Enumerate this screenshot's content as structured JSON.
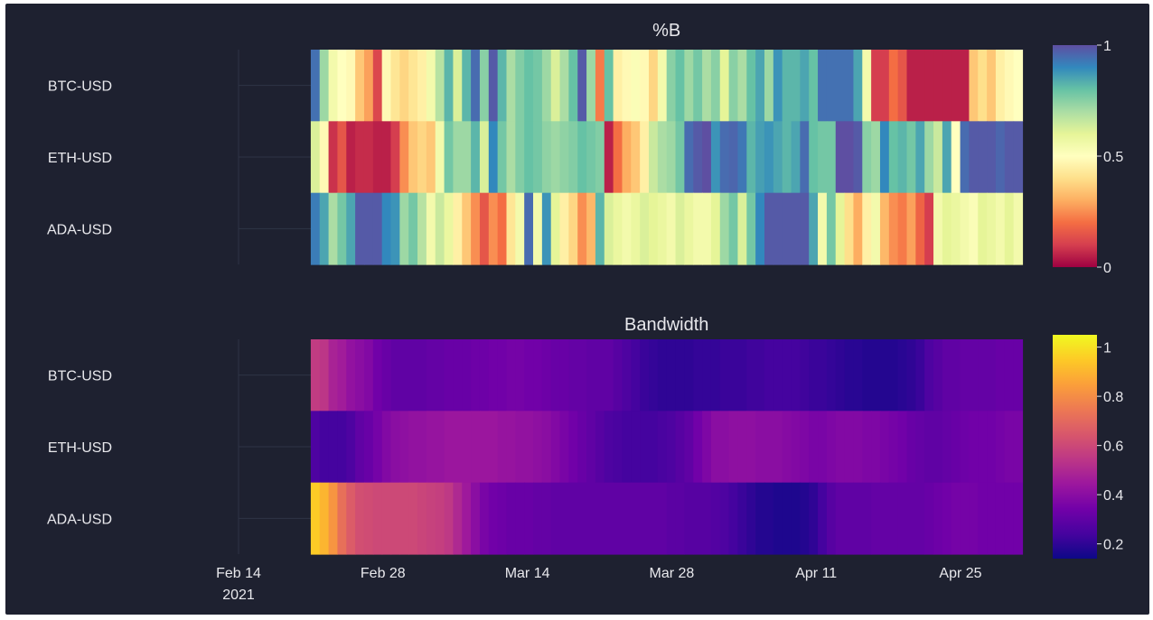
{
  "background_color": "#1e2130",
  "text_color": "#e8e8ec",
  "grid_color": "#2f3446",
  "chart_data": [
    {
      "type": "heatmap",
      "title": "%B",
      "xlabel": "",
      "ylabel": "",
      "y_categories": [
        "BTC-USD",
        "ETH-USD",
        "ADA-USD"
      ],
      "x_start": "2021-02-21",
      "x_end": "2021-05-01",
      "x_ticks": [
        "Feb 14",
        "Feb 28",
        "Mar 14",
        "Mar 28",
        "Apr 11",
        "Apr 25"
      ],
      "x_tick_year": "2021",
      "colorscale": "Spectral",
      "colorbar": {
        "range": [
          0,
          1
        ],
        "ticks": [
          "0",
          "0.5",
          "1"
        ]
      },
      "z": [
        [
          0.94,
          0.72,
          0.55,
          0.5,
          0.48,
          0.35,
          0.28,
          0.12,
          0.48,
          0.42,
          0.38,
          0.42,
          0.45,
          0.55,
          0.68,
          0.82,
          0.62,
          0.82,
          0.95,
          0.75,
          0.98,
          0.82,
          0.7,
          0.76,
          0.8,
          0.78,
          0.72,
          0.62,
          0.7,
          0.8,
          0.98,
          0.72,
          0.22,
          0.8,
          0.45,
          0.48,
          0.52,
          0.48,
          0.38,
          0.55,
          0.75,
          0.8,
          0.72,
          0.78,
          0.7,
          0.75,
          0.6,
          0.75,
          0.7,
          0.8,
          0.85,
          0.72,
          0.88,
          0.82,
          0.82,
          0.85,
          0.8,
          0.94,
          0.94,
          0.94,
          0.94,
          0.85,
          0.55,
          0.1,
          0.1,
          0.2,
          0.15,
          0.05,
          0.05,
          0.05,
          0.05,
          0.05,
          0.05,
          0.05,
          0.35,
          0.4,
          0.35,
          0.45,
          0.48,
          0.5
        ],
        [
          0.62,
          0.48,
          0.08,
          0.15,
          0.05,
          0.07,
          0.07,
          0.05,
          0.05,
          0.1,
          0.25,
          0.35,
          0.38,
          0.35,
          0.55,
          0.78,
          0.72,
          0.72,
          0.82,
          0.62,
          0.9,
          0.78,
          0.7,
          0.76,
          0.8,
          0.78,
          0.74,
          0.72,
          0.74,
          0.76,
          0.8,
          0.78,
          0.76,
          0.05,
          0.2,
          0.3,
          0.35,
          0.45,
          0.65,
          0.7,
          0.72,
          0.78,
          0.95,
          0.98,
          1.0,
          0.88,
          0.95,
          0.96,
          0.93,
          0.82,
          0.86,
          0.88,
          0.85,
          0.82,
          0.85,
          0.95,
          0.8,
          0.78,
          0.78,
          1.0,
          1.0,
          0.98,
          0.75,
          0.72,
          0.9,
          0.8,
          0.82,
          0.78,
          0.85,
          0.72,
          0.65,
          0.85,
          0.5,
          0.95,
          0.98,
          0.98,
          0.98,
          0.96,
          0.98,
          0.98
        ],
        [
          0.92,
          0.85,
          0.7,
          0.78,
          0.85,
          0.98,
          0.98,
          0.98,
          0.9,
          0.88,
          0.72,
          0.78,
          0.68,
          0.55,
          0.65,
          0.58,
          0.45,
          0.35,
          0.25,
          0.15,
          0.25,
          0.2,
          0.42,
          0.55,
          0.95,
          0.55,
          0.88,
          0.6,
          0.45,
          0.38,
          0.25,
          0.32,
          0.82,
          0.62,
          0.58,
          0.55,
          0.58,
          0.62,
          0.6,
          0.58,
          0.55,
          0.62,
          0.58,
          0.55,
          0.55,
          0.6,
          0.72,
          0.78,
          0.62,
          0.78,
          0.9,
          0.98,
          0.98,
          0.98,
          0.98,
          0.98,
          0.85,
          0.55,
          0.78,
          0.6,
          0.4,
          0.3,
          0.45,
          0.55,
          0.32,
          0.25,
          0.22,
          0.28,
          0.18,
          0.1,
          0.55,
          0.6,
          0.58,
          0.55,
          0.52,
          0.6,
          0.58,
          0.55,
          0.6,
          0.55
        ]
      ]
    },
    {
      "type": "heatmap",
      "title": "Bandwidth",
      "xlabel": "",
      "ylabel": "",
      "y_categories": [
        "BTC-USD",
        "ETH-USD",
        "ADA-USD"
      ],
      "x_start": "2021-02-21",
      "x_end": "2021-05-01",
      "x_ticks": [
        "Feb 14",
        "Feb 28",
        "Mar 14",
        "Mar 28",
        "Apr 11",
        "Apr 25"
      ],
      "x_tick_year": "2021",
      "colorscale": "Plasma",
      "colorbar": {
        "range": [
          0.14,
          1.05
        ],
        "ticks": [
          "0.2",
          "0.4",
          "0.6",
          "0.8",
          "1"
        ]
      },
      "z": [
        [
          0.56,
          0.54,
          0.48,
          0.46,
          0.42,
          0.4,
          0.38,
          0.34,
          0.32,
          0.3,
          0.3,
          0.3,
          0.3,
          0.31,
          0.31,
          0.32,
          0.32,
          0.32,
          0.33,
          0.33,
          0.34,
          0.34,
          0.35,
          0.35,
          0.34,
          0.34,
          0.33,
          0.32,
          0.32,
          0.31,
          0.31,
          0.3,
          0.3,
          0.3,
          0.28,
          0.26,
          0.24,
          0.22,
          0.21,
          0.2,
          0.2,
          0.2,
          0.2,
          0.21,
          0.21,
          0.21,
          0.22,
          0.22,
          0.22,
          0.23,
          0.23,
          0.24,
          0.24,
          0.24,
          0.24,
          0.23,
          0.22,
          0.22,
          0.21,
          0.2,
          0.19,
          0.19,
          0.18,
          0.18,
          0.18,
          0.18,
          0.19,
          0.2,
          0.22,
          0.26,
          0.28,
          0.3,
          0.3,
          0.31,
          0.31,
          0.31,
          0.31,
          0.32,
          0.32,
          0.32
        ],
        [
          0.26,
          0.24,
          0.24,
          0.24,
          0.26,
          0.3,
          0.32,
          0.35,
          0.38,
          0.4,
          0.41,
          0.42,
          0.42,
          0.43,
          0.43,
          0.44,
          0.44,
          0.44,
          0.44,
          0.44,
          0.44,
          0.43,
          0.43,
          0.42,
          0.42,
          0.41,
          0.4,
          0.38,
          0.36,
          0.34,
          0.32,
          0.3,
          0.28,
          0.26,
          0.25,
          0.24,
          0.24,
          0.24,
          0.24,
          0.25,
          0.26,
          0.28,
          0.3,
          0.34,
          0.37,
          0.4,
          0.4,
          0.41,
          0.41,
          0.41,
          0.4,
          0.4,
          0.4,
          0.39,
          0.38,
          0.37,
          0.36,
          0.36,
          0.37,
          0.38,
          0.38,
          0.38,
          0.37,
          0.37,
          0.36,
          0.35,
          0.34,
          0.32,
          0.31,
          0.3,
          0.3,
          0.31,
          0.32,
          0.33,
          0.34,
          0.34,
          0.34,
          0.35,
          0.36,
          0.36
        ],
        [
          0.95,
          0.9,
          0.82,
          0.72,
          0.66,
          0.62,
          0.61,
          0.6,
          0.6,
          0.6,
          0.6,
          0.6,
          0.59,
          0.58,
          0.57,
          0.55,
          0.5,
          0.45,
          0.4,
          0.36,
          0.34,
          0.33,
          0.32,
          0.32,
          0.32,
          0.31,
          0.31,
          0.3,
          0.3,
          0.3,
          0.3,
          0.3,
          0.3,
          0.3,
          0.3,
          0.3,
          0.3,
          0.3,
          0.3,
          0.3,
          0.29,
          0.29,
          0.28,
          0.28,
          0.28,
          0.27,
          0.26,
          0.24,
          0.22,
          0.2,
          0.18,
          0.18,
          0.17,
          0.17,
          0.17,
          0.18,
          0.2,
          0.24,
          0.28,
          0.3,
          0.3,
          0.3,
          0.3,
          0.31,
          0.31,
          0.31,
          0.31,
          0.31,
          0.31,
          0.32,
          0.33,
          0.34,
          0.35,
          0.35,
          0.35,
          0.34,
          0.34,
          0.34,
          0.34,
          0.34
        ]
      ]
    }
  ]
}
